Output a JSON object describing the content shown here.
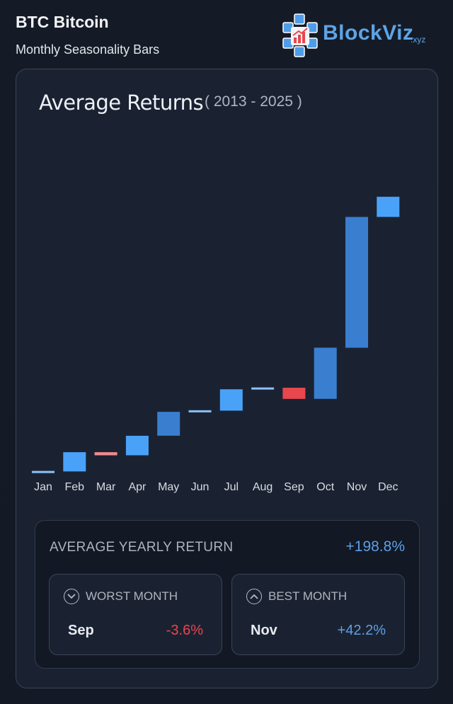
{
  "header": {
    "title": "BTC Bitcoin",
    "subtitle": "Monthly Seasonality Bars"
  },
  "logo": {
    "name": "BlockViz",
    "ext": ".xyz"
  },
  "chart_header": {
    "title": "Average Returns",
    "range": "( 2013 - 2025 )"
  },
  "chart_data": {
    "type": "bar",
    "subtype": "waterfall",
    "title": "Average Returns",
    "subtitle": "( 2013 - 2025 )",
    "categories": [
      "Jan",
      "Feb",
      "Mar",
      "Apr",
      "May",
      "Jun",
      "Jul",
      "Aug",
      "Sep",
      "Oct",
      "Nov",
      "Dec"
    ],
    "values": [
      0.4,
      6.2,
      -1.0,
      6.3,
      7.7,
      0.4,
      6.9,
      0.5,
      -3.6,
      16.5,
      42.2,
      6.5
    ],
    "cumulative_start": 0,
    "colors": {
      "positive": "#4aa2f8",
      "positive_dark": "#3a7fcf",
      "negative": "#e8474d",
      "negative_light": "#f08a8d",
      "positive_light": "#8ec2f5"
    },
    "ylim": [
      0,
      105
    ],
    "grid": false,
    "legend": "none"
  },
  "summary": {
    "yearly_label": "AVERAGE YEARLY RETURN",
    "yearly_value": "+198.8%",
    "worst": {
      "label": "WORST MONTH",
      "month": "Sep",
      "value": "-3.6%"
    },
    "best": {
      "label": "BEST MONTH",
      "month": "Nov",
      "value": "+42.2%"
    }
  }
}
